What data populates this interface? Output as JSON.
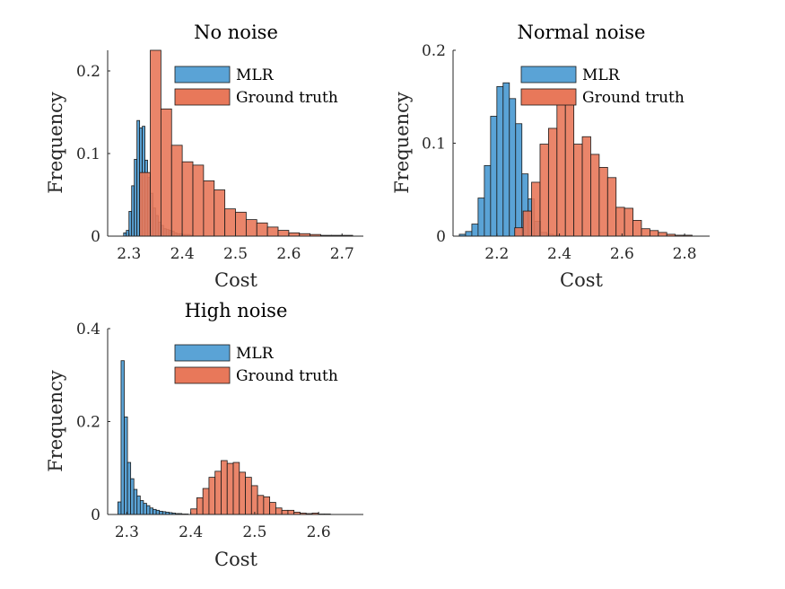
{
  "colors": {
    "mlr": "#5aa3d6",
    "ground_truth": "#e8785a",
    "axis": "#262626"
  },
  "chart_data": [
    {
      "type": "bar",
      "title": "No noise",
      "xlabel": "Cost",
      "ylabel": "Frequency",
      "xlim": [
        2.26,
        2.74
      ],
      "ylim": [
        0,
        0.225
      ],
      "xticks": [
        2.3,
        2.4,
        2.5,
        2.6,
        2.7
      ],
      "yticks": [
        0,
        0.1,
        0.2
      ],
      "xtick_labels": [
        "2.3",
        "2.4",
        "2.5",
        "2.6",
        "2.7"
      ],
      "ytick_labels": [
        "0",
        "0.1",
        "0.2"
      ],
      "legend": {
        "placement": "top-right",
        "entries": [
          "MLR",
          "Ground truth"
        ]
      },
      "series": [
        {
          "name": "MLR",
          "bin_start": 2.29,
          "bin_width": 0.005,
          "values": [
            0.004,
            0.007,
            0.03,
            0.061,
            0.093,
            0.14,
            0.131,
            0.133,
            0.092,
            0.071,
            0.052,
            0.034,
            0.025,
            0.017,
            0.013,
            0.009,
            0.008,
            0.007,
            0.006,
            0.004,
            0.003,
            0.003,
            0.002,
            0.002,
            0.002,
            0.001
          ]
        },
        {
          "name": "Ground truth",
          "bin_start": 2.32,
          "bin_width": 0.02,
          "values": [
            0.077,
            0.225,
            0.154,
            0.11,
            0.09,
            0.086,
            0.067,
            0.056,
            0.033,
            0.029,
            0.02,
            0.016,
            0.011,
            0.007,
            0.004,
            0.003,
            0.002,
            0.001,
            0.001,
            0.001
          ]
        }
      ]
    },
    {
      "type": "bar",
      "title": "Normal noise",
      "xlabel": "Cost",
      "ylabel": "Frequency",
      "xlim": [
        2.06,
        2.88
      ],
      "ylim": [
        0,
        0.2
      ],
      "xticks": [
        2.2,
        2.4,
        2.6,
        2.8
      ],
      "yticks": [
        0,
        0.1,
        0.2
      ],
      "xtick_labels": [
        "2.2",
        "2.4",
        "2.6",
        "2.8"
      ],
      "ytick_labels": [
        "0",
        "0.1",
        "0.2"
      ],
      "legend": {
        "placement": "top-right",
        "entries": [
          "MLR",
          "Ground truth"
        ]
      },
      "series": [
        {
          "name": "MLR",
          "bin_start": 2.08,
          "bin_width": 0.02,
          "values": [
            0.002,
            0.005,
            0.013,
            0.041,
            0.076,
            0.129,
            0.161,
            0.165,
            0.148,
            0.121,
            0.067,
            0.04,
            0.016,
            0.004,
            0.002,
            0.001
          ]
        },
        {
          "name": "Ground truth",
          "bin_start": 2.257,
          "bin_width": 0.027,
          "values": [
            0.009,
            0.027,
            0.058,
            0.099,
            0.116,
            0.148,
            0.153,
            0.099,
            0.107,
            0.088,
            0.074,
            0.063,
            0.031,
            0.03,
            0.017,
            0.008,
            0.006,
            0.004,
            0.002,
            0.001,
            0.001
          ]
        }
      ]
    },
    {
      "type": "bar",
      "title": "High noise",
      "xlabel": "Cost",
      "ylabel": "Frequency",
      "xlim": [
        2.27,
        2.67
      ],
      "ylim": [
        0,
        0.4
      ],
      "xticks": [
        2.3,
        2.4,
        2.5,
        2.6
      ],
      "yticks": [
        0,
        0.2,
        0.4
      ],
      "xtick_labels": [
        "2.3",
        "2.4",
        "2.5",
        "2.6"
      ],
      "ytick_labels": [
        "0",
        "0.2",
        "0.4"
      ],
      "legend": {
        "placement": "top-right",
        "entries": [
          "MLR",
          "Ground truth"
        ]
      },
      "series": [
        {
          "name": "MLR",
          "bin_start": 2.286,
          "bin_width": 0.005,
          "values": [
            0.027,
            0.331,
            0.21,
            0.112,
            0.077,
            0.054,
            0.04,
            0.03,
            0.024,
            0.019,
            0.014,
            0.011,
            0.009,
            0.007,
            0.006,
            0.005,
            0.004,
            0.003,
            0.002,
            0.002,
            0.001,
            0.001
          ]
        },
        {
          "name": "Ground truth",
          "bin_start": 2.4,
          "bin_width": 0.0095,
          "values": [
            0.012,
            0.036,
            0.056,
            0.08,
            0.093,
            0.116,
            0.11,
            0.112,
            0.091,
            0.08,
            0.062,
            0.041,
            0.038,
            0.026,
            0.014,
            0.009,
            0.009,
            0.005,
            0.003,
            0.002,
            0.003,
            0.001,
            0.001
          ]
        }
      ]
    }
  ]
}
